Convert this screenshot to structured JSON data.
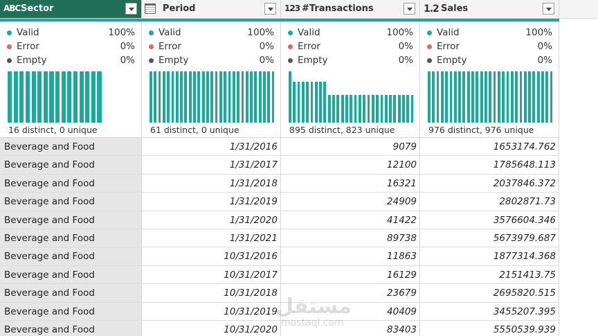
{
  "columns": [
    {
      "type_icon": "ABC",
      "name": "Sector",
      "quality": [
        {
          "label": "Valid",
          "value": "100%"
        },
        {
          "label": "Error",
          "value": "0%"
        },
        {
          "label": "Empty",
          "value": "0%"
        }
      ],
      "distribution": "16 distinct, 0 unique"
    },
    {
      "type_icon": null,
      "name": "Period",
      "quality": [
        {
          "label": "Valid",
          "value": "100%"
        },
        {
          "label": "Error",
          "value": "0%"
        },
        {
          "label": "Empty",
          "value": "0%"
        }
      ],
      "distribution": "61 distinct, 0 unique"
    },
    {
      "type_icon": "123",
      "name": "#Transactions",
      "quality": [
        {
          "label": "Valid",
          "value": "100%"
        },
        {
          "label": "Error",
          "value": "0%"
        },
        {
          "label": "Empty",
          "value": "0%"
        }
      ],
      "distribution": "895 distinct, 823 unique"
    },
    {
      "type_icon": "1.2",
      "name": "Sales",
      "quality": [
        {
          "label": "Valid",
          "value": "100%"
        },
        {
          "label": "Error",
          "value": "0%"
        },
        {
          "label": "Empty",
          "value": "0%"
        }
      ],
      "distribution": "976 distinct, 976 unique"
    }
  ],
  "rows": [
    [
      "Beverage and Food",
      "1/31/2016",
      "9079",
      "1653174.762"
    ],
    [
      "Beverage and Food",
      "1/31/2017",
      "12100",
      "1785648.113"
    ],
    [
      "Beverage and Food",
      "1/31/2018",
      "16321",
      "2037846.372"
    ],
    [
      "Beverage and Food",
      "1/31/2019",
      "24909",
      "2802871.73"
    ],
    [
      "Beverage and Food",
      "1/31/2020",
      "41422",
      "3576604.346"
    ],
    [
      "Beverage and Food",
      "1/31/2021",
      "89738",
      "5673979.687"
    ],
    [
      "Beverage and Food",
      "10/31/2016",
      "11863",
      "1877314.368"
    ],
    [
      "Beverage and Food",
      "10/31/2017",
      "16129",
      "2151413.75"
    ],
    [
      "Beverage and Food",
      "10/31/2018",
      "23679",
      "2695820.515"
    ],
    [
      "Beverage and Food",
      "10/31/2019",
      "40409",
      "3455207.395"
    ],
    [
      "Beverage and Food",
      "10/31/2020",
      "83403",
      "5550539.939"
    ]
  ],
  "watermark": {
    "arabic": "مستقل",
    "latin": "mostaql.com"
  }
}
